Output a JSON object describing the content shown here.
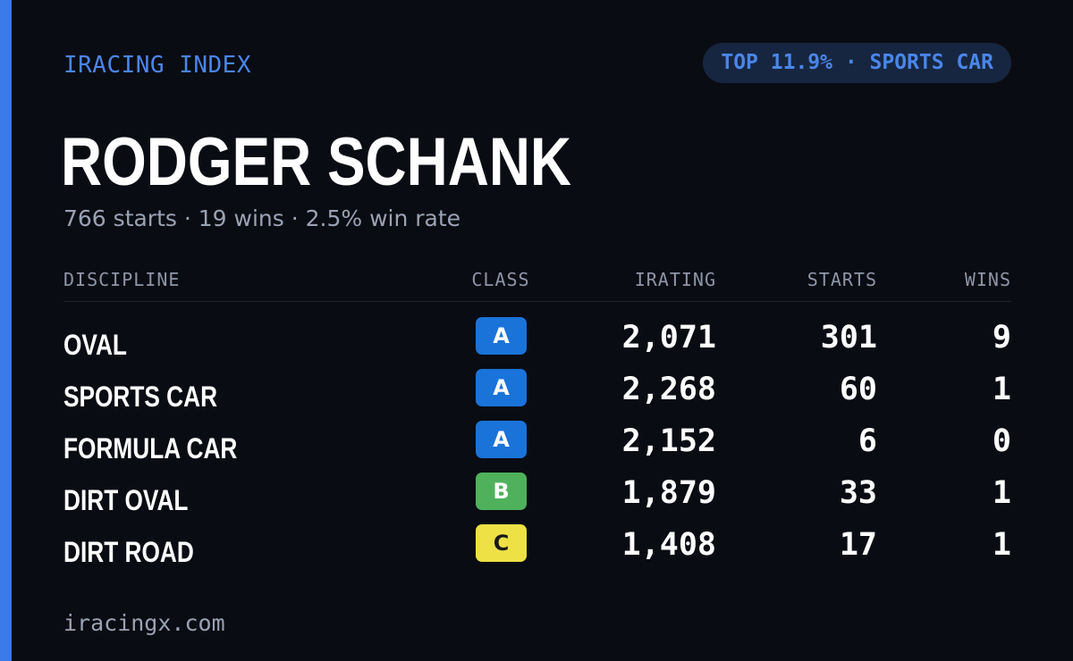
{
  "brand": "IRACING INDEX",
  "badge": "TOP 11.9% · SPORTS CAR",
  "driver": {
    "name": "RODGER SCHANK",
    "summary": "766 starts · 19 wins · 2.5% win rate"
  },
  "table": {
    "headers": {
      "discipline": "DISCIPLINE",
      "class": "CLASS",
      "irating": "IRATING",
      "starts": "STARTS",
      "wins": "WINS"
    },
    "rows": [
      {
        "discipline": "OVAL",
        "class": "A",
        "irating": "2,071",
        "starts": "301",
        "wins": "9"
      },
      {
        "discipline": "SPORTS CAR",
        "class": "A",
        "irating": "2,268",
        "starts": "60",
        "wins": "1"
      },
      {
        "discipline": "FORMULA CAR",
        "class": "A",
        "irating": "2,152",
        "starts": "6",
        "wins": "0"
      },
      {
        "discipline": "DIRT OVAL",
        "class": "B",
        "irating": "1,879",
        "starts": "33",
        "wins": "1"
      },
      {
        "discipline": "DIRT ROAD",
        "class": "C",
        "irating": "1,408",
        "starts": "17",
        "wins": "1"
      }
    ]
  },
  "class_colors": {
    "A": {
      "bg": "#1a73d9",
      "fg": "#ffffff"
    },
    "B": {
      "bg": "#4fb15c",
      "fg": "#ffffff"
    },
    "C": {
      "bg": "#ede145",
      "fg": "#1a1a1a"
    }
  },
  "colors": {
    "accent": "#3b7be8",
    "background": "#0a0c13"
  },
  "footer": "iracingx.com"
}
